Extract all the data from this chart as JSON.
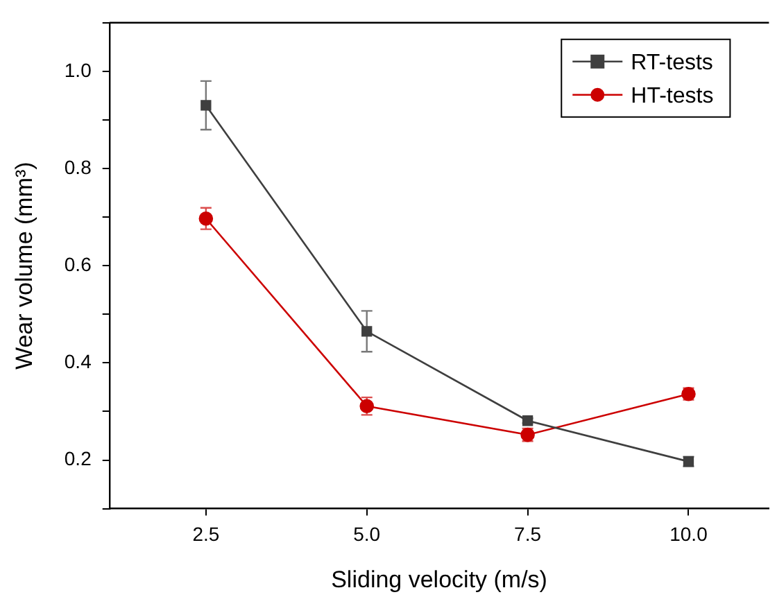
{
  "chart_data": {
    "type": "line",
    "xlabel": "Sliding velocity (m/s)",
    "ylabel": "Wear volume (mm³)",
    "x": [
      2.5,
      5.0,
      7.5,
      10.0
    ],
    "series": [
      {
        "name": "RT-tests",
        "color": "#3f3f3f",
        "marker": "square",
        "values": [
          0.93,
          0.465,
          0.281,
          0.197
        ],
        "errors": [
          0.05,
          0.042,
          0.005,
          0.01
        ]
      },
      {
        "name": "HT-tests",
        "color": "#cc0000",
        "marker": "circle",
        "values": [
          0.697,
          0.311,
          0.252,
          0.336
        ],
        "errors": [
          0.022,
          0.018,
          0.013,
          0.012
        ]
      }
    ],
    "xlim": [
      1.0,
      11.25
    ],
    "xticks": [
      2.5,
      {
        "value": 5,
        "label": "5.0"
      },
      7.5,
      {
        "value": 10,
        "label": "10.0"
      }
    ],
    "ylim": [
      0.1,
      1.1
    ],
    "yticks": [
      {
        "value": 0.1,
        "label": null
      },
      0.2,
      {
        "value": 0.3,
        "label": null
      },
      0.4,
      {
        "value": 0.5,
        "label": null
      },
      0.6,
      {
        "value": 0.7,
        "label": null
      },
      0.8,
      {
        "value": 0.9,
        "label": null
      },
      {
        "value": 1,
        "label": "1.0"
      },
      {
        "value": 1.1,
        "label": null
      }
    ],
    "legend": "top right",
    "grid": false,
    "line_style": "solid"
  }
}
